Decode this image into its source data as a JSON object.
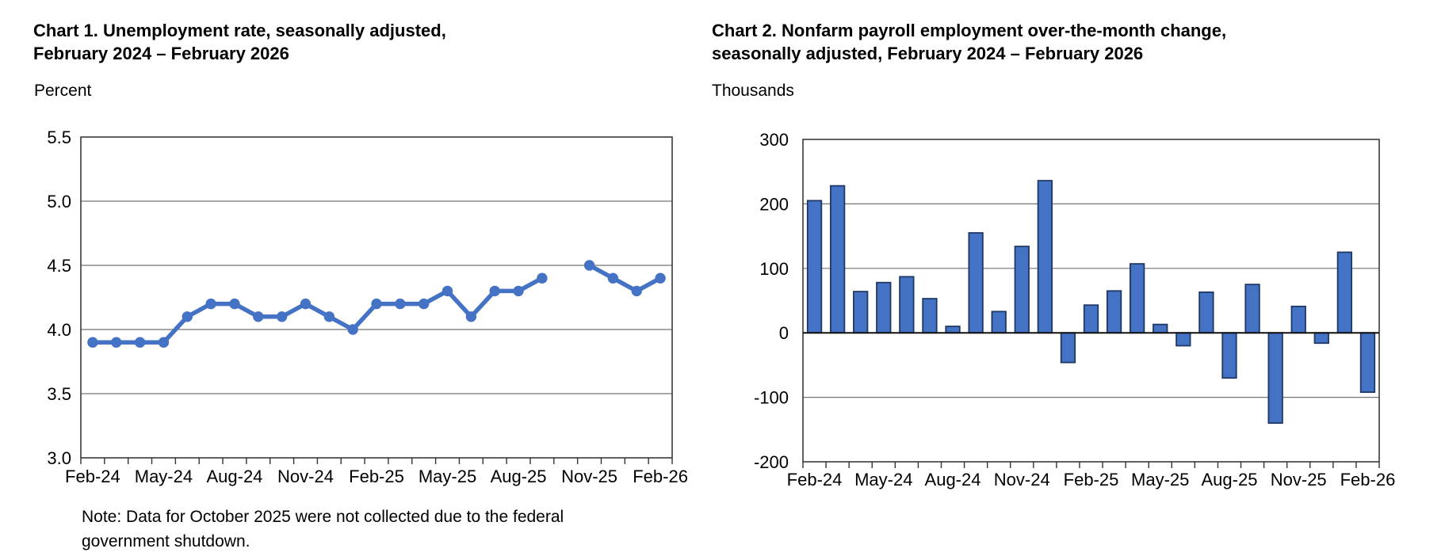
{
  "page": {
    "background_color": "#ffffff"
  },
  "chart_data": [
    {
      "type": "line",
      "id": "chart-1",
      "title": "Chart 1. Unemployment rate, seasonally adjusted, February 2024 – February 2026",
      "title_line1": "Chart 1. Unemployment rate, seasonally adjusted,",
      "title_line2": "February 2024 – February 2026",
      "ylabel": "Percent",
      "ylim": [
        3.0,
        5.5
      ],
      "ytick_labels": [
        "5.5",
        "5.0",
        "4.5",
        "4.0",
        "3.5",
        "3.0"
      ],
      "ytick_values": [
        5.5,
        5.0,
        4.5,
        4.0,
        3.5,
        3.0
      ],
      "x": [
        "Feb-24",
        "Mar-24",
        "Apr-24",
        "May-24",
        "Jun-24",
        "Jul-24",
        "Aug-24",
        "Sep-24",
        "Oct-24",
        "Nov-24",
        "Dec-24",
        "Jan-25",
        "Feb-25",
        "Mar-25",
        "Apr-25",
        "May-25",
        "Jun-25",
        "Jul-25",
        "Aug-25",
        "Sep-25",
        "Oct-25",
        "Nov-25",
        "Dec-25",
        "Jan-26",
        "Feb-26"
      ],
      "xtick_every": 3,
      "values": [
        3.9,
        3.9,
        3.9,
        3.9,
        4.1,
        4.2,
        4.2,
        4.1,
        4.1,
        4.2,
        4.1,
        4.0,
        4.2,
        4.2,
        4.2,
        4.3,
        4.1,
        4.3,
        4.3,
        4.4,
        null,
        4.5,
        4.4,
        4.3,
        4.4
      ],
      "missing_month": "Oct-25",
      "line_color": "#4472C4",
      "grid": true,
      "legend": "none",
      "note_line1": "Note: Data for October 2025 were not collected due to the federal",
      "note_line2": "government shutdown."
    },
    {
      "type": "bar",
      "id": "chart-2",
      "title": "Chart 2. Nonfarm payroll employment over-the-month change, seasonally adjusted, February 2024 – February 2026",
      "title_line1": "Chart 2. Nonfarm payroll employment over-the-month change,",
      "title_line2": "seasonally adjusted, February 2024 – February 2026",
      "ylabel": "Thousands",
      "ylim": [
        -200,
        300
      ],
      "ytick_labels": [
        "300",
        "200",
        "100",
        "0",
        "-100",
        "-200"
      ],
      "ytick_values": [
        300,
        200,
        100,
        0,
        -100,
        -200
      ],
      "x": [
        "Feb-24",
        "Mar-24",
        "Apr-24",
        "May-24",
        "Jun-24",
        "Jul-24",
        "Aug-24",
        "Sep-24",
        "Oct-24",
        "Nov-24",
        "Dec-24",
        "Jan-25",
        "Feb-25",
        "Mar-25",
        "Apr-25",
        "May-25",
        "Jun-25",
        "Jul-25",
        "Aug-25",
        "Sep-25",
        "Oct-25",
        "Nov-25",
        "Dec-25",
        "Jan-26",
        "Feb-26"
      ],
      "xtick_every": 3,
      "values": [
        205,
        228,
        64,
        78,
        87,
        53,
        10,
        155,
        33,
        134,
        236,
        -46,
        43,
        65,
        107,
        13,
        -20,
        63,
        -70,
        75,
        -140,
        41,
        -16,
        125,
        -92
      ],
      "bar_fill": "#4472C4",
      "bar_border": "#1F3864",
      "grid": true,
      "legend": "none"
    }
  ]
}
